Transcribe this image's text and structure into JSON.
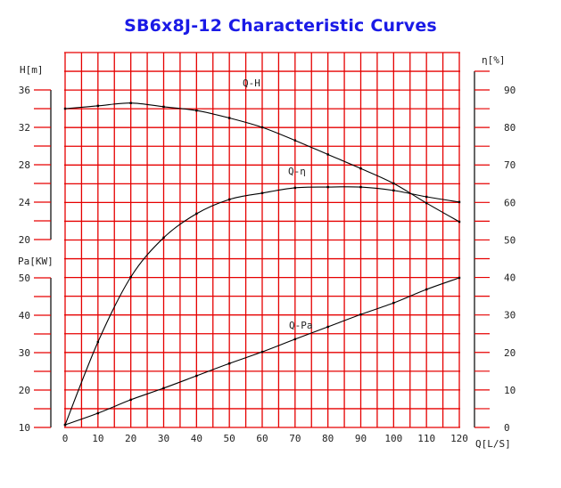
{
  "title": "SB6x8J-12 Characteristic Curves",
  "colors": {
    "title": "#1a1ae6",
    "grid": "#e60000",
    "curve": "#000000",
    "axis": "#000000"
  },
  "axes": {
    "x": {
      "label": "Q[L/S]",
      "ticks": [
        0,
        10,
        20,
        30,
        40,
        50,
        60,
        70,
        80,
        90,
        100,
        110,
        120
      ],
      "range": [
        0,
        120
      ]
    },
    "head": {
      "label": "H[m]",
      "ticks": [
        36,
        32,
        28,
        24,
        20
      ],
      "range": [
        20,
        36
      ]
    },
    "power": {
      "label": "Pa[KW]",
      "ticks": [
        50,
        40,
        30,
        20,
        10
      ],
      "range": [
        10,
        50
      ]
    },
    "efficiency": {
      "label": "η[%]",
      "ticks": [
        90,
        80,
        70,
        60,
        50,
        40,
        30,
        20,
        10,
        0
      ],
      "range": [
        0,
        90
      ]
    }
  },
  "curve_labels": {
    "qh": "Q-H",
    "qeta": "Q-η",
    "qpa": "Q-Pa"
  },
  "chart_data": {
    "type": "line",
    "title": "SB6x8J-12 Characteristic Curves",
    "xlabel": "Q[L/S]",
    "ylabel": "H[m] / Pa[KW] / η[%]",
    "grid": true,
    "x": [
      0,
      10,
      20,
      30,
      40,
      50,
      60,
      70,
      80,
      90,
      100,
      110,
      120
    ],
    "series": [
      {
        "name": "Q-H",
        "axis": "H[m]",
        "values": [
          34.0,
          34.3,
          34.6,
          34.2,
          33.8,
          33.0,
          32.0,
          30.6,
          29.1,
          27.6,
          26.0,
          23.9,
          21.9
        ]
      },
      {
        "name": "Q-η",
        "axis": "η[%]",
        "values": [
          0.7,
          22.8,
          40.1,
          50.6,
          57.0,
          60.8,
          62.5,
          63.9,
          64.1,
          64.1,
          63.2,
          61.5,
          60.1
        ]
      },
      {
        "name": "Q-Pa",
        "axis": "Pa[KW]",
        "values": [
          10.7,
          13.8,
          17.4,
          20.5,
          23.8,
          27.1,
          30.2,
          33.6,
          36.9,
          40.2,
          43.3,
          46.9,
          50.0
        ]
      }
    ],
    "xlim": [
      0,
      120
    ],
    "ylim_head": [
      20,
      36
    ],
    "ylim_power": [
      10,
      50
    ],
    "ylim_efficiency": [
      0,
      90
    ]
  }
}
